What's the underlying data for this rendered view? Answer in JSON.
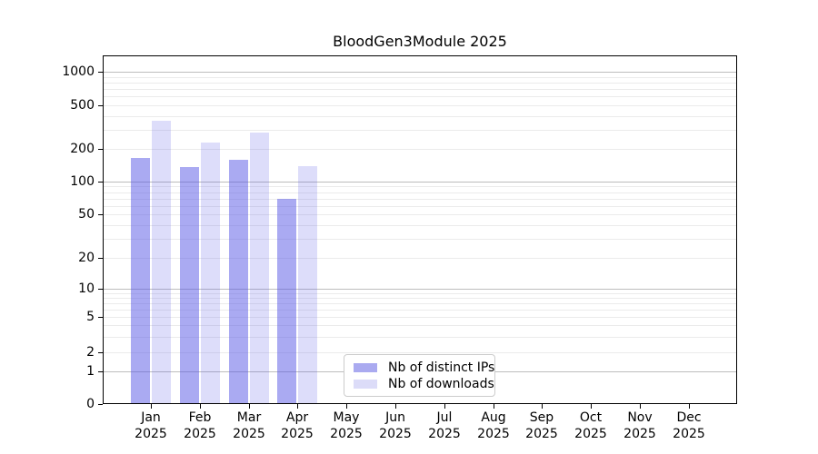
{
  "title": "BloodGen3Module 2025",
  "chart_data": {
    "type": "bar",
    "title": "BloodGen3Module 2025",
    "x_categories": [
      {
        "month": "Jan",
        "year": "2025"
      },
      {
        "month": "Feb",
        "year": "2025"
      },
      {
        "month": "Mar",
        "year": "2025"
      },
      {
        "month": "Apr",
        "year": "2025"
      },
      {
        "month": "May",
        "year": "2025"
      },
      {
        "month": "Jun",
        "year": "2025"
      },
      {
        "month": "Jul",
        "year": "2025"
      },
      {
        "month": "Aug",
        "year": "2025"
      },
      {
        "month": "Sep",
        "year": "2025"
      },
      {
        "month": "Oct",
        "year": "2025"
      },
      {
        "month": "Nov",
        "year": "2025"
      },
      {
        "month": "Dec",
        "year": "2025"
      }
    ],
    "series": [
      {
        "name": "Nb of distinct IPs",
        "color": "rgba(85,85,230,0.5)",
        "solid_color": "#aaaaf0",
        "values": [
          165,
          135,
          160,
          70,
          0,
          0,
          0,
          0,
          0,
          0,
          0,
          0
        ]
      },
      {
        "name": "Nb of downloads",
        "color": "rgba(85,85,230,0.2)",
        "solid_color": "#dcdcf8",
        "values": [
          360,
          230,
          280,
          140,
          0,
          0,
          0,
          0,
          0,
          0,
          0,
          0
        ]
      }
    ],
    "y_axis": {
      "scale": "symlog",
      "tick_values": [
        0,
        1,
        2,
        5,
        10,
        20,
        50,
        100,
        200,
        500,
        1000
      ],
      "ylim": [
        0,
        1400
      ]
    },
    "grid": {
      "major": true,
      "minor": true
    },
    "legend": {
      "position": "lower-center-left",
      "items": [
        "Nb of distinct IPs",
        "Nb of downloads"
      ]
    }
  },
  "colors": {
    "major_grid": "#bdbdbd",
    "minor_grid": "#ebebeb",
    "axis": "#000000",
    "legend_border": "#cccccc"
  }
}
